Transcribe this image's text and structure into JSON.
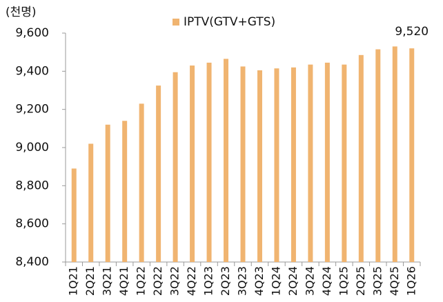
{
  "chart_data": {
    "type": "bar",
    "unit_label": "(천명)",
    "categories": [
      "1Q21",
      "2Q21",
      "3Q21",
      "4Q21",
      "1Q22",
      "2Q22",
      "3Q22",
      "4Q22",
      "1Q23",
      "2Q23",
      "3Q23",
      "4Q23",
      "1Q24",
      "2Q24",
      "3Q24",
      "4Q24",
      "1Q25",
      "2Q25",
      "3Q25",
      "4Q25",
      "1Q26"
    ],
    "series": [
      {
        "name": "IPTV(GTV+GTS)",
        "color": "#f0b470",
        "values": [
          8890,
          9020,
          9120,
          9140,
          9230,
          9325,
          9395,
          9430,
          9445,
          9465,
          9425,
          9405,
          9415,
          9420,
          9435,
          9445,
          9435,
          9485,
          9515,
          9530,
          9520
        ],
        "value_labels": [
          null,
          null,
          null,
          null,
          null,
          null,
          null,
          null,
          null,
          null,
          null,
          null,
          null,
          null,
          null,
          null,
          null,
          null,
          null,
          null,
          "9,520"
        ]
      }
    ],
    "ylim": [
      8400,
      9600
    ],
    "yticks": [
      {
        "value": 8400,
        "label": "8,400"
      },
      {
        "value": 8600,
        "label": "8,600"
      },
      {
        "value": 8800,
        "label": "8,800"
      },
      {
        "value": 9000,
        "label": "9,000"
      },
      {
        "value": 9200,
        "label": "9,200"
      },
      {
        "value": 9400,
        "label": "9,400"
      },
      {
        "value": 9600,
        "label": "9,600"
      }
    ],
    "grid": false,
    "legend": "top"
  }
}
